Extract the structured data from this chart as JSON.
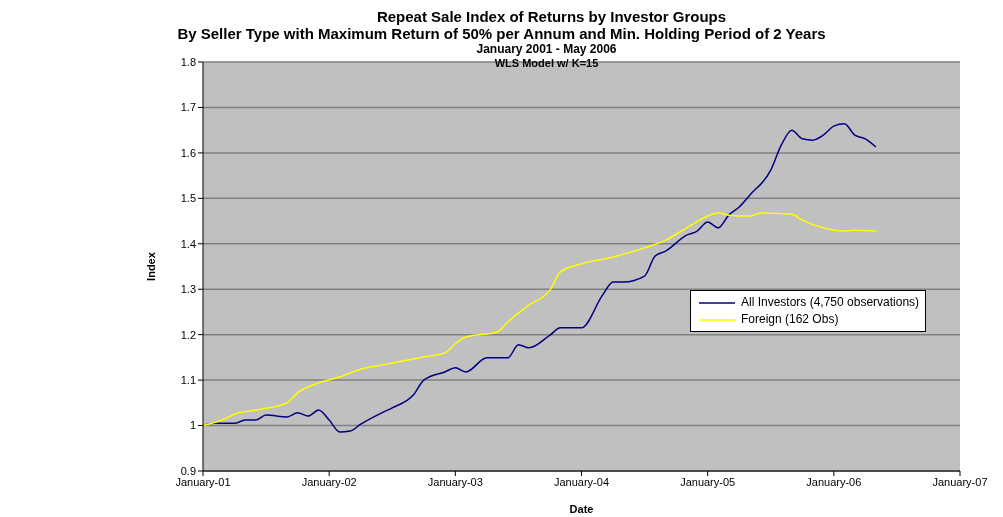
{
  "chart_data": {
    "type": "line",
    "title": "Repeat Sale Index of Returns by Investor Groups\nBy Seller Type with Maximum Return of 50% per Annum and Min. Holding Period of 2 Years",
    "subtitle": "January 2001 - May 2006",
    "annotations": [
      "WLS Model w/ K=15"
    ],
    "xlabel": "Date",
    "ylabel": "Index",
    "xlim": [
      "2001-01",
      "2007-01"
    ],
    "xticks": [
      {
        "value": "2001-01",
        "label": "January-01"
      },
      {
        "value": "2002-01",
        "label": "January-02"
      },
      {
        "value": "2003-01",
        "label": "January-03"
      },
      {
        "value": "2004-01",
        "label": "January-04"
      },
      {
        "value": "2005-01",
        "label": "January-05"
      },
      {
        "value": "2006-01",
        "label": "January-06"
      },
      {
        "value": "2007-01",
        "label": "January-07"
      }
    ],
    "ylim": [
      0.9,
      1.8
    ],
    "yticks": [
      0.9,
      1,
      1.1,
      1.2,
      1.3,
      1.4,
      1.5,
      1.6,
      1.7,
      1.8
    ],
    "grid": "y",
    "legend": "right",
    "marker": "none",
    "line_style": "solid",
    "series": [
      {
        "name": "All Investors (4,750 observations)",
        "color": "#000080",
        "x": [
          "2001-01",
          "2001-02",
          "2001-04",
          "2001-05",
          "2001-06",
          "2001-07",
          "2001-09",
          "2001-10",
          "2001-11",
          "2001-12",
          "2002-01",
          "2002-02",
          "2002-03",
          "2002-04",
          "2002-06",
          "2002-07",
          "2002-09",
          "2002-10",
          "2002-12",
          "2003-01",
          "2003-02",
          "2003-04",
          "2003-06",
          "2003-07",
          "2003-08",
          "2003-10",
          "2003-11",
          "2004-01",
          "2004-03",
          "2004-04",
          "2004-05",
          "2004-07",
          "2004-08",
          "2004-09",
          "2004-11",
          "2004-12",
          "2005-01",
          "2005-02",
          "2005-03",
          "2005-04",
          "2005-05",
          "2005-07",
          "2005-08",
          "2005-09",
          "2005-10",
          "2005-11",
          "2005-12",
          "2006-01",
          "2006-02",
          "2006-03",
          "2006-04",
          "2006-05"
        ],
        "values": [
          1,
          1.005,
          1.005,
          1.012,
          1.012,
          1.023,
          1.019,
          1.028,
          1.021,
          1.034,
          1.012,
          0.986,
          0.988,
          1.003,
          1.028,
          1.039,
          1.067,
          1.1,
          1.118,
          1.127,
          1.118,
          1.149,
          1.149,
          1.178,
          1.171,
          1.199,
          1.215,
          1.215,
          1.287,
          1.316,
          1.316,
          1.329,
          1.373,
          1.384,
          1.419,
          1.428,
          1.448,
          1.435,
          1.463,
          1.481,
          1.507,
          1.562,
          1.617,
          1.65,
          1.631,
          1.628,
          1.639,
          1.659,
          1.664,
          1.639,
          1.631,
          1.613
        ]
      },
      {
        "name": "Foreign (162 Obs)",
        "color": "#ffff00",
        "x": [
          "2001-01",
          "2001-03",
          "2001-04",
          "2001-06",
          "2001-09",
          "2001-10",
          "2001-12",
          "2002-02",
          "2002-04",
          "2002-06",
          "2002-08",
          "2002-10",
          "2002-12",
          "2003-01",
          "2003-02",
          "2003-05",
          "2003-06",
          "2003-08",
          "2003-10",
          "2003-11",
          "2004-01",
          "2004-04",
          "2004-07",
          "2004-09",
          "2004-11",
          "2005-01",
          "2005-02",
          "2005-03",
          "2005-05",
          "2005-06",
          "2005-09",
          "2005-10",
          "2005-12",
          "2006-02",
          "2006-03",
          "2006-05"
        ],
        "values": [
          1,
          1.014,
          1.025,
          1.034,
          1.05,
          1.072,
          1.094,
          1.107,
          1.124,
          1.133,
          1.142,
          1.151,
          1.16,
          1.18,
          1.195,
          1.206,
          1.228,
          1.265,
          1.298,
          1.338,
          1.356,
          1.371,
          1.391,
          1.408,
          1.435,
          1.461,
          1.468,
          1.463,
          1.461,
          1.468,
          1.465,
          1.452,
          1.435,
          1.428,
          1.43,
          1.428
        ]
      }
    ]
  }
}
